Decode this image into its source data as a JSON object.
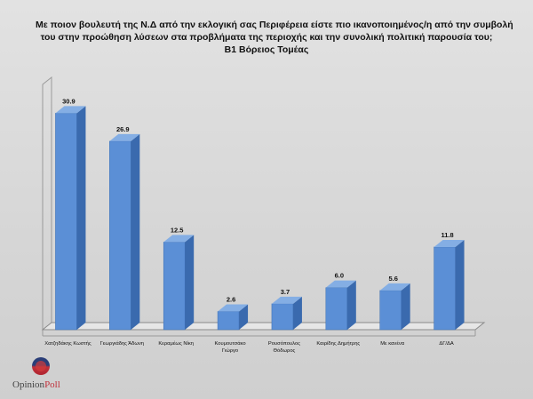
{
  "title_lines": [
    "Με ποιον βουλευτή της Ν.Δ από την εκλογική σας Περιφέρεια είστε πιο ικανοποιημένος/η από την συμβολή",
    "του στην προώθηση λύσεων στα προβλήματα της περιοχής και την συνολική πολιτική παρουσία του;",
    "Β1 Βόρειος Τομέας"
  ],
  "logo": {
    "part1": "Opinion",
    "part2": "Poll"
  },
  "chart_data": {
    "type": "bar",
    "categories": [
      "Χατζηδάκης Κωστής",
      "Γεωργιάδης Άδωνη",
      "Κεραμέως Νίκη",
      "Κουμουτσάκο Γιώργο",
      "Ρουσόπουλος Θόδωρος",
      "Καιρίδης Δημήτρης",
      "Με κανένα",
      "ΔΓ/ΔΑ"
    ],
    "values": [
      30.9,
      26.9,
      12.5,
      2.6,
      3.7,
      6.0,
      5.6,
      11.8
    ],
    "value_labels": [
      "30.9",
      "26.9",
      "12.5",
      "2.6",
      "3.7",
      "6.0",
      "5.6",
      "11.8"
    ],
    "ylim": [
      0,
      35
    ],
    "grid": false,
    "colors": {
      "bar_front": "#5b8fd6",
      "bar_side": "#3a6aae",
      "bar_top": "#84aee4"
    }
  }
}
